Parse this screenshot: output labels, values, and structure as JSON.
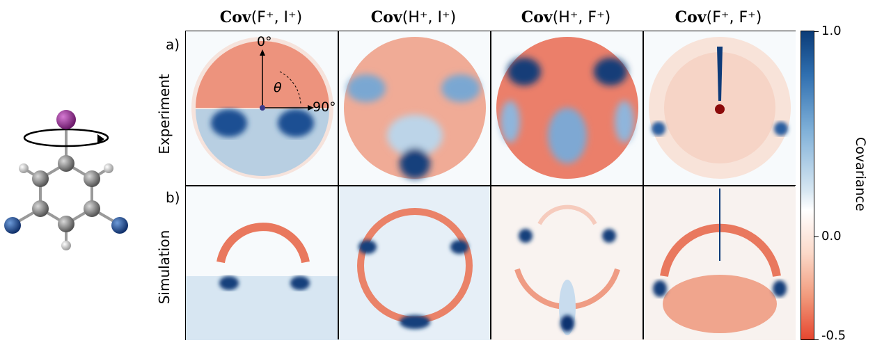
{
  "columns": [
    {
      "prefix": "Cov",
      "args": "(F⁺, I⁺)"
    },
    {
      "prefix": "Cov",
      "args": "(H⁺, I⁺)"
    },
    {
      "prefix": "Cov",
      "args": "(H⁺, F⁺)"
    },
    {
      "prefix": "Cov",
      "args": "(F⁺, F⁺)"
    }
  ],
  "rows": [
    {
      "letter": "a)",
      "label": "Experiment"
    },
    {
      "letter": "b)",
      "label": "Simulation"
    }
  ],
  "annotations": {
    "zero_angle": "0°",
    "ninety_angle": "90°",
    "theta": "θ"
  },
  "colorbar": {
    "title": "Covariance",
    "ticks": [
      "1.0",
      "0.0",
      "-0.5"
    ],
    "tick_values": [
      1.0,
      0.0,
      -0.5
    ],
    "max_color": "#0b3c78",
    "mid_color": "#ffffff",
    "min_color": "#e6462f"
  },
  "molecule": {
    "atoms": {
      "iodine": "#8e2a8c",
      "carbon": "#8a8a8a",
      "hydrogen": "#e8e8e8",
      "fluorine": "#1f4e9a"
    }
  }
}
